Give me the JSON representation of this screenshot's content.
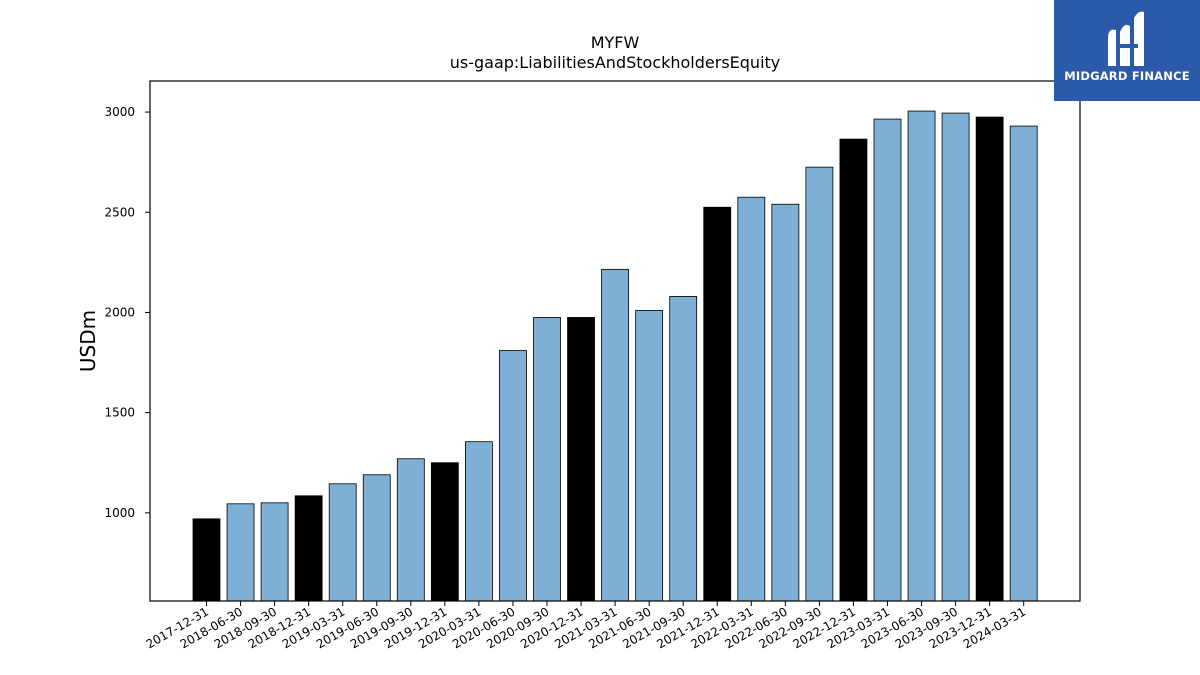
{
  "chart_data": {
    "type": "bar",
    "title": "MYFW",
    "subtitle": "us-gaap:LiabilitiesAndStockholdersEquity",
    "xlabel": "",
    "ylabel": "USDm",
    "ylim": [
      560,
      3155
    ],
    "yticks": [
      1000,
      1500,
      2000,
      2500,
      3000
    ],
    "categories": [
      "2017-12-31",
      "2018-06-30",
      "2018-09-30",
      "2018-12-31",
      "2019-03-31",
      "2019-06-30",
      "2019-09-30",
      "2019-12-31",
      "2020-03-31",
      "2020-06-30",
      "2020-09-30",
      "2020-12-31",
      "2021-03-31",
      "2021-06-30",
      "2021-09-30",
      "2021-12-31",
      "2022-03-31",
      "2022-06-30",
      "2022-09-30",
      "2022-12-31",
      "2023-03-31",
      "2023-06-30",
      "2023-09-30",
      "2023-12-31",
      "2024-03-31"
    ],
    "values": [
      970,
      1045,
      1050,
      1085,
      1145,
      1190,
      1270,
      1250,
      1355,
      1810,
      1975,
      1975,
      2215,
      2010,
      2080,
      2525,
      2575,
      2540,
      2725,
      2865,
      2965,
      3005,
      2995,
      2975,
      2930
    ],
    "bar_colors": {
      "year_end": "#000000",
      "quarter": "#7eb0d5"
    },
    "grid": false,
    "legend": "none"
  },
  "logo": {
    "text": "MIDGARD FINANCE",
    "icon": "midgard-logo-icon",
    "background": "#2c5aab"
  }
}
